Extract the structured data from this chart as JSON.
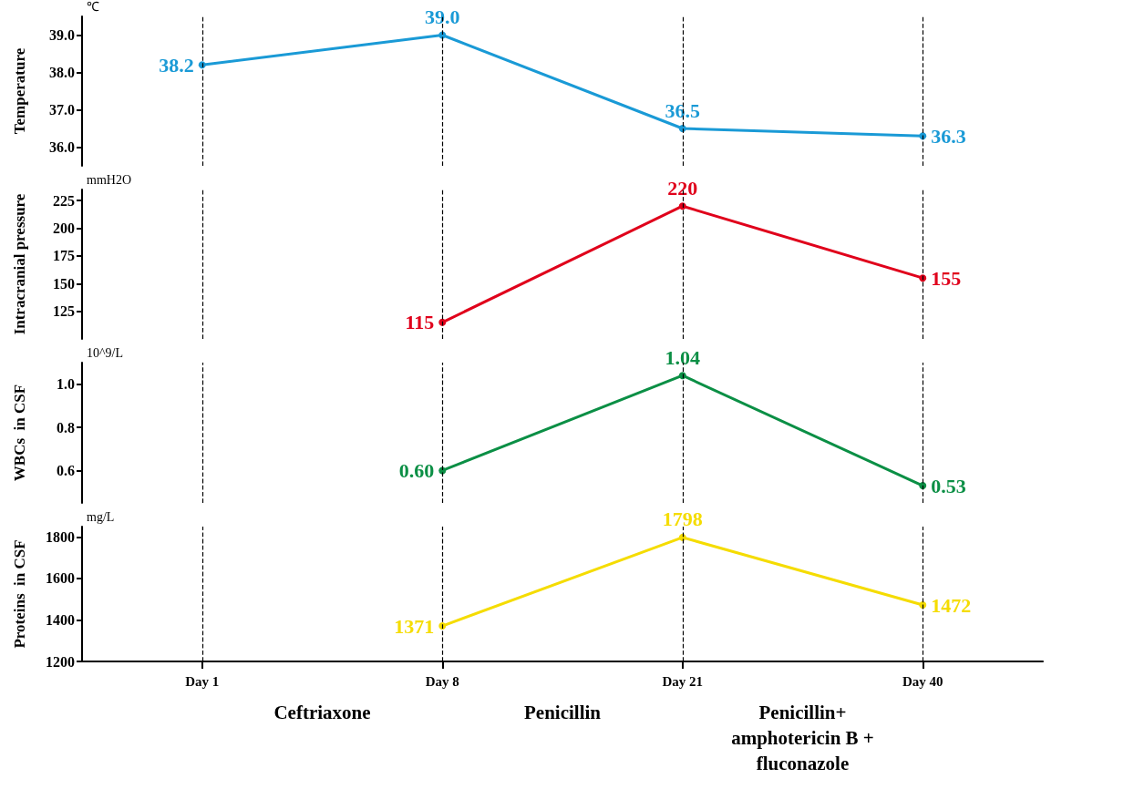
{
  "chart_data": [
    {
      "type": "line",
      "ylabel": "Temperature",
      "annotations": [
        "℃"
      ],
      "categories": [
        "Day 1",
        "Day 8",
        "Day 21",
        "Day 40"
      ],
      "tick_labels": "y",
      "marker": "circle",
      "line_style": "solid",
      "series": [
        {
          "color": "#1a9ad6",
          "values": [
            38.2,
            39.0,
            36.5,
            36.3
          ],
          "value_labels": [
            "38.2",
            "39.0",
            "36.5",
            "36.3"
          ]
        }
      ],
      "ylim": [
        35.5,
        39.5
      ],
      "yticks": [
        {
          "value": 36,
          "label": "36.0"
        },
        {
          "value": 37,
          "label": "37.0"
        },
        {
          "value": 38,
          "label": "38.0"
        },
        {
          "value": 39,
          "label": "39.0"
        }
      ],
      "ref_lines": [
        {
          "axis": "x",
          "value": "Day 1",
          "line_style": "dashed",
          "color": "#000000"
        },
        {
          "axis": "x",
          "value": "Day 8",
          "line_style": "dashed",
          "color": "#000000"
        },
        {
          "axis": "x",
          "value": "Day 21",
          "line_style": "dashed",
          "color": "#000000"
        },
        {
          "axis": "x",
          "value": "Day 40",
          "line_style": "dashed",
          "color": "#000000"
        }
      ]
    },
    {
      "type": "line",
      "ylabel": "Intracranial pressure",
      "annotations": [
        "mmH2O"
      ],
      "categories": [
        "Day 1",
        "Day 8",
        "Day 21",
        "Day 40"
      ],
      "tick_labels": "y",
      "marker": "circle",
      "line_style": "solid",
      "series": [
        {
          "color": "#e0001b",
          "values": [
            null,
            115,
            220,
            155
          ],
          "value_labels": [
            null,
            "115",
            "220",
            "155"
          ]
        }
      ],
      "ylim": [
        100,
        235
      ],
      "yticks": [
        125,
        150,
        175,
        200,
        225
      ],
      "ref_lines": [
        {
          "axis": "x",
          "value": "Day 1",
          "line_style": "dashed",
          "color": "#000000"
        },
        {
          "axis": "x",
          "value": "Day 8",
          "line_style": "dashed",
          "color": "#000000"
        },
        {
          "axis": "x",
          "value": "Day 21",
          "line_style": "dashed",
          "color": "#000000"
        },
        {
          "axis": "x",
          "value": "Day 40",
          "line_style": "dashed",
          "color": "#000000"
        }
      ]
    },
    {
      "type": "line",
      "ylabel": "WBCs  in CSF",
      "annotations": [
        "10^9/L"
      ],
      "categories": [
        "Day 1",
        "Day 8",
        "Day 21",
        "Day 40"
      ],
      "tick_labels": "y",
      "marker": "circle",
      "line_style": "solid",
      "series": [
        {
          "color": "#0b8f45",
          "values": [
            null,
            0.6,
            1.04,
            0.53
          ],
          "value_labels": [
            null,
            "0.60",
            "1.04",
            "0.53"
          ]
        }
      ],
      "ylim": [
        0.45,
        1.1
      ],
      "yticks": [
        {
          "value": 0.6,
          "label": "0.6"
        },
        {
          "value": 0.8,
          "label": "0.8"
        },
        {
          "value": 1.0,
          "label": "1.0"
        }
      ],
      "ref_lines": [
        {
          "axis": "x",
          "value": "Day 1",
          "line_style": "dashed",
          "color": "#000000"
        },
        {
          "axis": "x",
          "value": "Day 8",
          "line_style": "dashed",
          "color": "#000000"
        },
        {
          "axis": "x",
          "value": "Day 21",
          "line_style": "dashed",
          "color": "#000000"
        },
        {
          "axis": "x",
          "value": "Day 40",
          "line_style": "dashed",
          "color": "#000000"
        }
      ]
    },
    {
      "type": "line",
      "ylabel": "Proteins  in CSF",
      "annotations": [
        "mg/L",
        "Ceftriaxone",
        "Penicillin",
        "Penicillin+\namphotericin B +\nfluconazole"
      ],
      "categories": [
        "Day 1",
        "Day 8",
        "Day 21",
        "Day 40"
      ],
      "marker": "circle",
      "line_style": "solid",
      "series": [
        {
          "color": "#f5dc00",
          "values": [
            null,
            1371,
            1798,
            1472
          ],
          "value_labels": [
            null,
            "1371",
            "1798",
            "1472"
          ]
        }
      ],
      "ylim": [
        1200,
        1850
      ],
      "yticks": [
        1200,
        1400,
        1600,
        1800
      ],
      "ref_lines": [
        {
          "axis": "x",
          "value": "Day 1",
          "line_style": "dashed",
          "color": "#000000"
        },
        {
          "axis": "x",
          "value": "Day 8",
          "line_style": "dashed",
          "color": "#000000"
        },
        {
          "axis": "x",
          "value": "Day 21",
          "line_style": "dashed",
          "color": "#000000"
        },
        {
          "axis": "x",
          "value": "Day 40",
          "line_style": "dashed",
          "color": "#000000"
        }
      ]
    }
  ]
}
